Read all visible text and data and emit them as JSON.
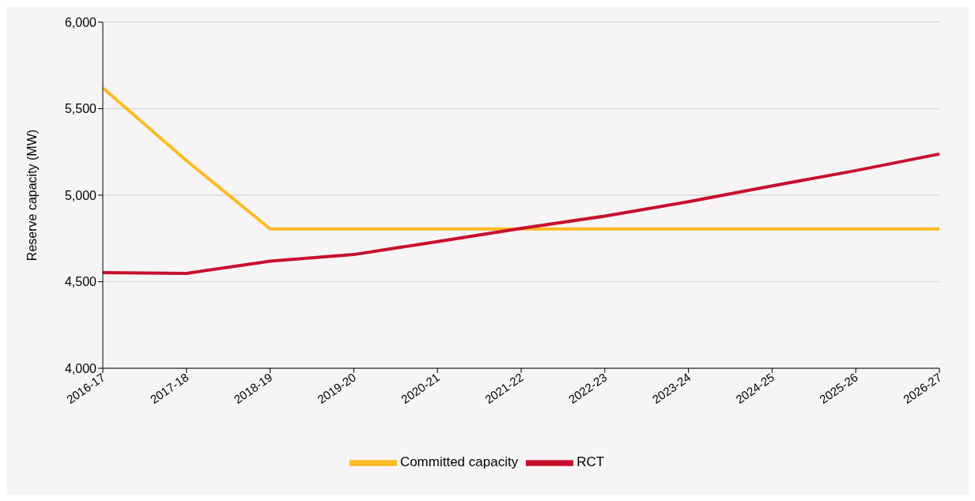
{
  "chart_data": {
    "type": "line",
    "ylabel": "Reserve capacity (MW)",
    "categories": [
      "2016-17",
      "2017-18",
      "2018-19",
      "2019-20",
      "2020-21",
      "2021-22",
      "2022-23",
      "2023-24",
      "2024-25",
      "2025-26",
      "2026-27"
    ],
    "series": [
      {
        "name": "Committed capacity",
        "color": "#fdbb22",
        "values": [
          5620,
          5200,
          4805,
          4805,
          4805,
          4805,
          4805,
          4805,
          4805,
          4805,
          4805
        ]
      },
      {
        "name": "RCT",
        "color": "#c8102e",
        "values": [
          4552,
          4548,
          4619,
          4657,
          4732,
          4808,
          4879,
          4962,
          5054,
          5142,
          5238
        ]
      }
    ],
    "ylim": [
      4000,
      6000
    ],
    "yticks": [
      {
        "value": 4000,
        "label": "4,000"
      },
      {
        "value": 4500,
        "label": "4,500"
      },
      {
        "value": 5000,
        "label": "5,000"
      },
      {
        "value": 5500,
        "label": "5,500"
      },
      {
        "value": 6000,
        "label": "6,000"
      }
    ],
    "grid": "y",
    "legend": "bottom",
    "marker": "none",
    "line_style": "solid"
  }
}
